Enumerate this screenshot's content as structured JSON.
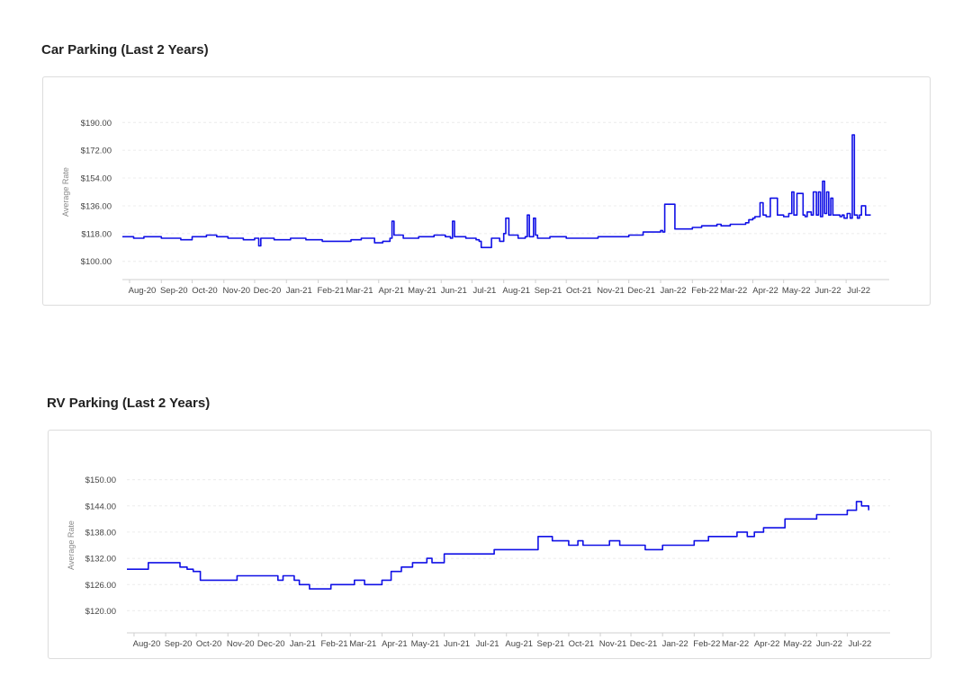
{
  "chart_data": [
    {
      "type": "line",
      "title": "Car Parking (Last 2 Years)",
      "ylabel": "Average Rate",
      "xlabel": "",
      "ylim": [
        94,
        196
      ],
      "yticks": [
        100,
        118,
        136,
        154,
        172,
        190
      ],
      "ytick_labels": [
        "$100.00",
        "$118.00",
        "$136.00",
        "$154.00",
        "$172.00",
        "$190.00"
      ],
      "xlim": [
        "2020-07-25",
        "2022-08-12"
      ],
      "xtick_labels": [
        "Aug-20",
        "Sep-20",
        "Oct-20",
        "Nov-20",
        "Dec-20",
        "Jan-21",
        "Feb-21",
        "Mar-21",
        "Apr-21",
        "May-21",
        "Jun-21",
        "Jul-21",
        "Aug-21",
        "Sep-21",
        "Oct-21",
        "Nov-21",
        "Dec-21",
        "Jan-22",
        "Feb-22",
        "Mar-22",
        "Apr-22",
        "May-22",
        "Jun-22",
        "Jul-22"
      ],
      "xtick_dates": [
        "2020-08-01",
        "2020-09-01",
        "2020-10-01",
        "2020-11-01",
        "2020-12-01",
        "2021-01-01",
        "2021-02-01",
        "2021-03-01",
        "2021-04-01",
        "2021-05-01",
        "2021-06-01",
        "2021-07-01",
        "2021-08-01",
        "2021-09-01",
        "2021-10-01",
        "2021-11-01",
        "2021-12-01",
        "2022-01-01",
        "2022-02-01",
        "2022-03-01",
        "2022-04-01",
        "2022-05-01",
        "2022-06-01",
        "2022-07-01"
      ],
      "grid": true,
      "legend": "none",
      "color": "#1010e6",
      "series": [
        {
          "x": [
            "2020-07-25",
            "2020-08-05",
            "2020-08-15",
            "2020-09-01",
            "2020-09-20",
            "2020-10-01",
            "2020-10-15",
            "2020-10-25",
            "2020-11-05",
            "2020-11-20",
            "2020-12-01",
            "2020-12-05",
            "2020-12-07",
            "2020-12-20",
            "2021-01-05",
            "2021-01-20",
            "2021-02-05",
            "2021-02-20",
            "2021-03-05",
            "2021-03-15",
            "2021-03-28",
            "2021-04-05",
            "2021-04-12",
            "2021-04-14",
            "2021-04-16",
            "2021-04-25",
            "2021-05-10",
            "2021-05-25",
            "2021-06-05",
            "2021-06-10",
            "2021-06-12",
            "2021-06-14",
            "2021-06-25",
            "2021-07-05",
            "2021-07-08",
            "2021-07-10",
            "2021-07-20",
            "2021-07-28",
            "2021-08-01",
            "2021-08-03",
            "2021-08-06",
            "2021-08-15",
            "2021-08-22",
            "2021-08-24",
            "2021-08-26",
            "2021-08-30",
            "2021-09-01",
            "2021-09-03",
            "2021-09-15",
            "2021-10-01",
            "2021-10-15",
            "2021-11-01",
            "2021-11-15",
            "2021-12-01",
            "2021-12-15",
            "2022-01-01",
            "2022-01-03",
            "2022-01-05",
            "2022-01-15",
            "2022-02-01",
            "2022-02-10",
            "2022-02-25",
            "2022-03-01",
            "2022-03-10",
            "2022-03-25",
            "2022-03-28",
            "2022-03-29",
            "2022-04-01",
            "2022-04-03",
            "2022-04-08",
            "2022-04-11",
            "2022-04-14",
            "2022-04-18",
            "2022-04-25",
            "2022-05-01",
            "2022-05-03",
            "2022-05-06",
            "2022-05-09",
            "2022-05-11",
            "2022-05-14",
            "2022-05-20",
            "2022-05-22",
            "2022-05-24",
            "2022-05-28",
            "2022-05-30",
            "2022-06-02",
            "2022-06-04",
            "2022-06-06",
            "2022-06-08",
            "2022-06-10",
            "2022-06-12",
            "2022-06-14",
            "2022-06-16",
            "2022-06-18",
            "2022-06-25",
            "2022-06-27",
            "2022-06-29",
            "2022-07-02",
            "2022-07-05",
            "2022-07-07",
            "2022-07-09",
            "2022-07-12",
            "2022-07-14",
            "2022-07-16",
            "2022-07-20",
            "2022-07-25"
          ],
          "y": [
            116,
            115,
            116,
            115,
            114,
            116,
            117,
            116,
            115,
            114,
            115,
            110,
            115,
            114,
            115,
            114,
            113,
            113,
            114,
            115,
            112,
            113,
            115,
            126,
            117,
            115,
            116,
            117,
            116,
            115,
            126,
            116,
            115,
            114,
            113,
            109,
            115,
            113,
            118,
            128,
            117,
            115,
            116,
            130,
            116,
            128,
            117,
            115,
            116,
            115,
            115,
            116,
            116,
            117,
            119,
            120,
            119,
            137,
            121,
            122,
            123,
            124,
            123,
            124,
            125,
            127,
            127,
            128,
            129,
            138,
            130,
            129,
            141,
            130,
            129,
            129,
            131,
            145,
            130,
            144,
            130,
            129,
            132,
            130,
            145,
            130,
            145,
            129,
            152,
            131,
            145,
            130,
            141,
            130,
            129,
            130,
            128,
            131,
            128,
            182,
            130,
            128,
            130,
            136,
            130,
            130
          ]
        }
      ]
    },
    {
      "type": "line",
      "title": "RV Parking (Last 2 Years)",
      "ylabel": "Average Rate",
      "xlabel": "",
      "ylim": [
        117,
        153
      ],
      "yticks": [
        120,
        126,
        132,
        138,
        144,
        150
      ],
      "ytick_labels": [
        "$120.00",
        "$126.00",
        "$132.00",
        "$138.00",
        "$144.00",
        "$150.00"
      ],
      "xlim": [
        "2020-07-25",
        "2022-08-12"
      ],
      "xtick_labels": [
        "Aug-20",
        "Sep-20",
        "Oct-20",
        "Nov-20",
        "Dec-20",
        "Jan-21",
        "Feb-21",
        "Mar-21",
        "Apr-21",
        "May-21",
        "Jun-21",
        "Jul-21",
        "Aug-21",
        "Sep-21",
        "Oct-21",
        "Nov-21",
        "Dec-21",
        "Jan-22",
        "Feb-22",
        "Mar-22",
        "Apr-22",
        "May-22",
        "Jun-22",
        "Jul-22"
      ],
      "xtick_dates": [
        "2020-08-01",
        "2020-09-01",
        "2020-10-01",
        "2020-11-01",
        "2020-12-01",
        "2021-01-01",
        "2021-02-01",
        "2021-03-01",
        "2021-04-01",
        "2021-05-01",
        "2021-06-01",
        "2021-07-01",
        "2021-08-01",
        "2021-09-01",
        "2021-10-01",
        "2021-11-01",
        "2021-12-01",
        "2022-01-01",
        "2022-02-01",
        "2022-03-01",
        "2022-04-01",
        "2022-05-01",
        "2022-06-01",
        "2022-07-01"
      ],
      "grid": true,
      "legend": "none",
      "color": "#1010e6",
      "series": [
        {
          "x": [
            "2020-07-25",
            "2020-08-10",
            "2020-08-15",
            "2020-09-10",
            "2020-09-15",
            "2020-09-22",
            "2020-09-28",
            "2020-10-05",
            "2020-10-20",
            "2020-11-10",
            "2020-12-20",
            "2020-12-25",
            "2021-01-05",
            "2021-01-10",
            "2021-01-20",
            "2021-02-10",
            "2021-03-05",
            "2021-03-15",
            "2021-03-25",
            "2021-04-01",
            "2021-04-10",
            "2021-04-20",
            "2021-05-01",
            "2021-05-10",
            "2021-05-15",
            "2021-05-20",
            "2021-06-01",
            "2021-06-20",
            "2021-07-01",
            "2021-07-20",
            "2021-08-01",
            "2021-08-15",
            "2021-09-01",
            "2021-09-15",
            "2021-10-01",
            "2021-10-10",
            "2021-10-15",
            "2021-11-01",
            "2021-11-10",
            "2021-11-20",
            "2021-12-01",
            "2021-12-15",
            "2022-01-01",
            "2022-01-15",
            "2022-02-01",
            "2022-02-15",
            "2022-03-01",
            "2022-03-10",
            "2022-03-15",
            "2022-03-25",
            "2022-04-01",
            "2022-04-10",
            "2022-05-01",
            "2022-05-15",
            "2022-05-25",
            "2022-06-01",
            "2022-06-20",
            "2022-07-01",
            "2022-07-05",
            "2022-07-10",
            "2022-07-15",
            "2022-07-22"
          ],
          "y": [
            129.5,
            129.5,
            131,
            131,
            130,
            129.5,
            129,
            127,
            127,
            128,
            127,
            128,
            127,
            126,
            125,
            126,
            127,
            126,
            126,
            127,
            129,
            130,
            131,
            131,
            132,
            131,
            133,
            133,
            133,
            134,
            134,
            134,
            137,
            136,
            135,
            136,
            135,
            135,
            136,
            135,
            135,
            134,
            135,
            135,
            136,
            137,
            137,
            137,
            138,
            137,
            138,
            139,
            141,
            141,
            141,
            142,
            142,
            143,
            143,
            145,
            144,
            143
          ]
        }
      ]
    }
  ]
}
